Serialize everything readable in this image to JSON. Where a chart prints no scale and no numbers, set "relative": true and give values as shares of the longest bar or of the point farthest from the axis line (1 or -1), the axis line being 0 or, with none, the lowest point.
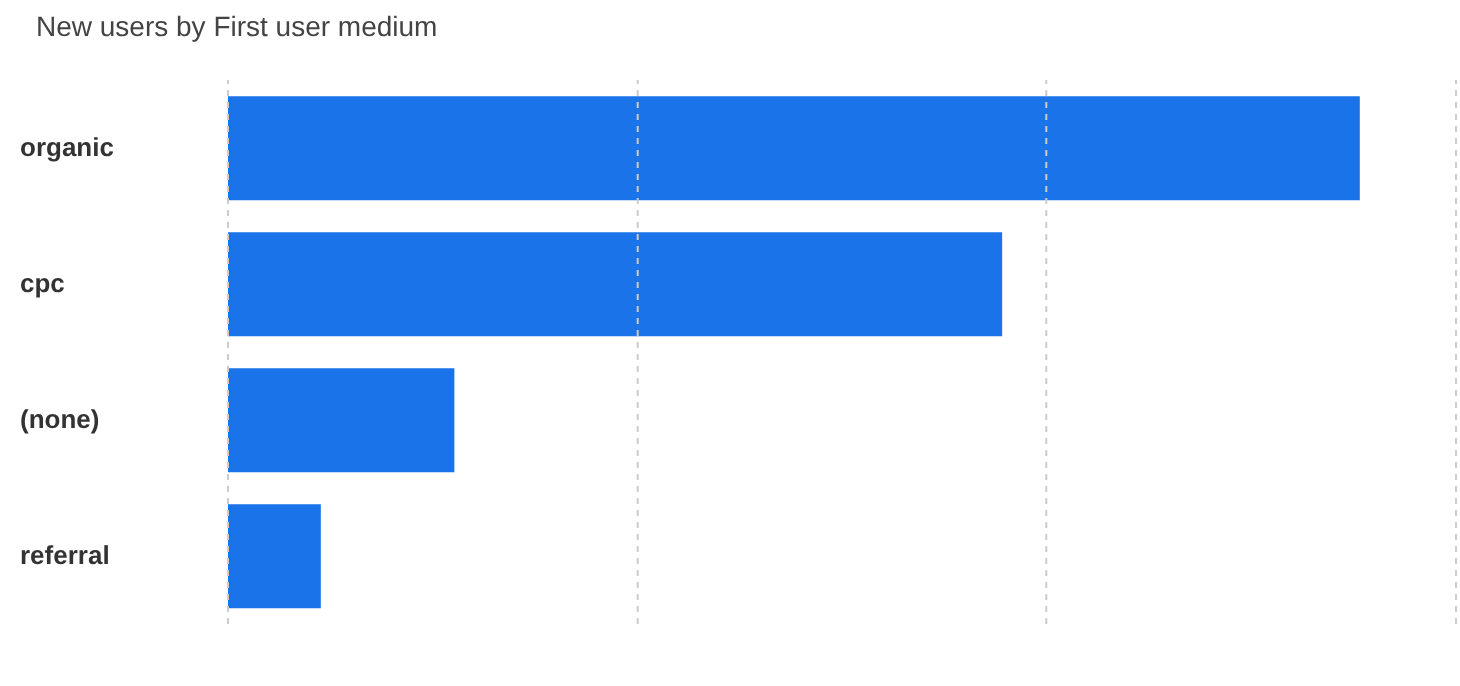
{
  "chart_data": {
    "type": "bar",
    "orientation": "horizontal",
    "relative": true,
    "title": "New users by First user medium",
    "categories": [
      "organic",
      "cpc",
      "(none)",
      "referral"
    ],
    "values": [
      1,
      0.684,
      0.2,
      0.082
    ],
    "color": "#1a73e8",
    "ref_lines": [
      {
        "axis": "x",
        "value": 0,
        "color": "#cccccc",
        "line_style": "dashed"
      },
      {
        "axis": "x",
        "value": 0.362,
        "color": "#cccccc",
        "line_style": "dashed"
      },
      {
        "axis": "x",
        "value": 0.723,
        "color": "#cccccc",
        "line_style": "dashed"
      },
      {
        "axis": "x",
        "value": 1.085,
        "color": "#cccccc",
        "line_style": "dashed"
      }
    ]
  }
}
